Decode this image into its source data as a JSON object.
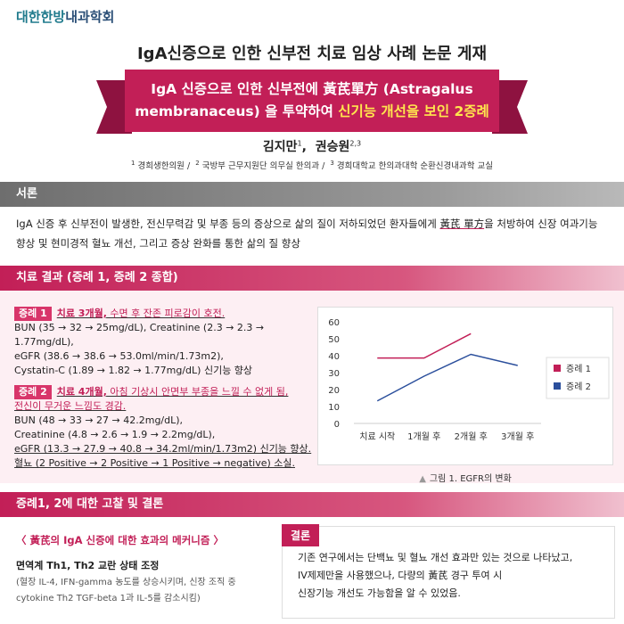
{
  "brand": {
    "part1": "대한한방",
    "part2": "내과학회"
  },
  "title": "IgA신증으로 인한 신부전 치료 임상 사례 논문 게재",
  "ribbon": {
    "line1": "IgA 신증으로 인한 신부전에 黃芪單方 (Astragalus",
    "line2_plain": "membranaceus) 을 투약하여 ",
    "line2_highlight": "신기능 개선을 보인 2증례"
  },
  "authors": {
    "a1": "김지만",
    "a1_sup": "1",
    "sep": ",",
    "a2": "권승원",
    "a2_sup": "2,3"
  },
  "affiliations": {
    "s1": "1",
    "t1": "경희생한의원 /",
    "s2": "2",
    "t2": "국방부 근무지원단 의무실 한의과 /",
    "s3": "3",
    "t3": "경희대학교 한의과대학 순환신경내과학 교실"
  },
  "sections": {
    "intro_title": "서론",
    "results_title": "치료 결과 (증례 1, 증례 2 종합)",
    "discussion_title": "증례1, 2에 대한 고찰 및 결론"
  },
  "intro": {
    "text1": "IgA 신증 후 신부전이 발생한, 전신무력감 및 부종 등의 증상으로 삶의 질이 저하되었던 환자들에게 ",
    "text_ul": "黃芪 單方",
    "text2": "을 처방하여 신장 여과기능",
    "text3": "향상 및 현미경적 혈뇨 개선, 그리고 증상 완화를 통한 삶의 질 향상"
  },
  "case1": {
    "tag": "증례 1",
    "lead": "치료 3개월,",
    "lead_rest": " 수면 후 잔존 피로감이 호전.",
    "l1": "BUN (35 → 32 → 25mg/dL),  Creatinine (2.3 → 2.3 → 1.77mg/dL),",
    "l2": "eGFR (38.6 → 38.6 → 53.0ml/min/1.73m2),",
    "l3": "Cystatin-C (1.89 → 1.82 → 1.77mg/dL)  신기능 향상"
  },
  "case2": {
    "tag": "증례 2",
    "lead": "치료 4개월,",
    "lead_rest": " 아침 기상시 안면부 부종을 느낄 수 없게 됨,",
    "l0": "전신이 무거운 느낌도 경감.",
    "l1": "BUN (48 → 33 → 27 → 42.2mg/dL),",
    "l2": "Creatinine (4.8 → 2.6 → 1.9 → 2.2mg/dL),",
    "l3": "eGFR (13.3 → 27.9 → 40.8 → 34.2ml/min/1.73m2) 신기능 향상.",
    "l4": "혈뇨 (2 Positive → 2 Positive → 1 Positive → negative) 소실."
  },
  "chart_data": {
    "type": "line",
    "categories": [
      "치료 시작",
      "1개월 후",
      "2개월 후",
      "3개월 후"
    ],
    "yticks": [
      0,
      10,
      20,
      30,
      40,
      50,
      60
    ],
    "ylim": [
      0,
      60
    ],
    "grid": false,
    "legend_position": "right",
    "series": [
      {
        "name": "증례 1",
        "color": "#c21f57",
        "values": [
          38.6,
          38.6,
          53.0,
          null
        ]
      },
      {
        "name": "증례 2",
        "color": "#2b4f9c",
        "values": [
          13.3,
          27.9,
          40.8,
          34.2
        ]
      }
    ],
    "caption": "그림 1. EGFR의 변화"
  },
  "mechanism": {
    "title": "〈 黃芪의 IgA 신증에 대한 효과의 메커니즘 〉",
    "subtitle": "면역계 Th1, Th2 교란 상태 조정",
    "detail1": "(혈장 IL-4, IFN-gamma 농도를 상승시키며, 신장 조직 중",
    "detail2": "cytokine Th2 TGF-beta 1과 IL-5를 감소시킴)"
  },
  "conclusion": {
    "tag": "결론",
    "line1": "기존 연구에서는 단백뇨 및 혈뇨 개선 효과만 있는 것으로 나타났고,",
    "line2": "IV제제만을 사용했으나, 다량의 黃芪 경구 투여 시",
    "line3": "신장기능 개선도 가능함을 알 수 있었음."
  }
}
